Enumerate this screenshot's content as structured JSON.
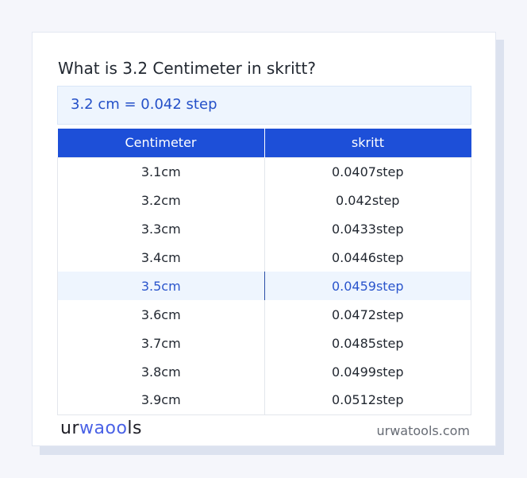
{
  "title": "What is 3.2 Centimeter in skritt?",
  "result": "3.2 cm = 0.042 step",
  "table": {
    "headers": [
      "Centimeter",
      "skritt"
    ],
    "rows": [
      [
        "3.1cm",
        "0.0407step"
      ],
      [
        "3.2cm",
        "0.042step"
      ],
      [
        "3.3cm",
        "0.0433step"
      ],
      [
        "3.4cm",
        "0.0446step"
      ],
      [
        "3.5cm",
        "0.0459step"
      ],
      [
        "3.6cm",
        "0.0472step"
      ],
      [
        "3.7cm",
        "0.0485step"
      ],
      [
        "3.8cm",
        "0.0499step"
      ],
      [
        "3.9cm",
        "0.0512step"
      ]
    ],
    "highlighted_row": 4
  },
  "footer": {
    "logo": "urwatools",
    "logo_parts": [
      "ur",
      "wa",
      "oo",
      "ls"
    ],
    "site": "urwatools.com"
  },
  "colors": {
    "accent": "#1d4fd8",
    "highlight_bg": "#eef5fe"
  }
}
